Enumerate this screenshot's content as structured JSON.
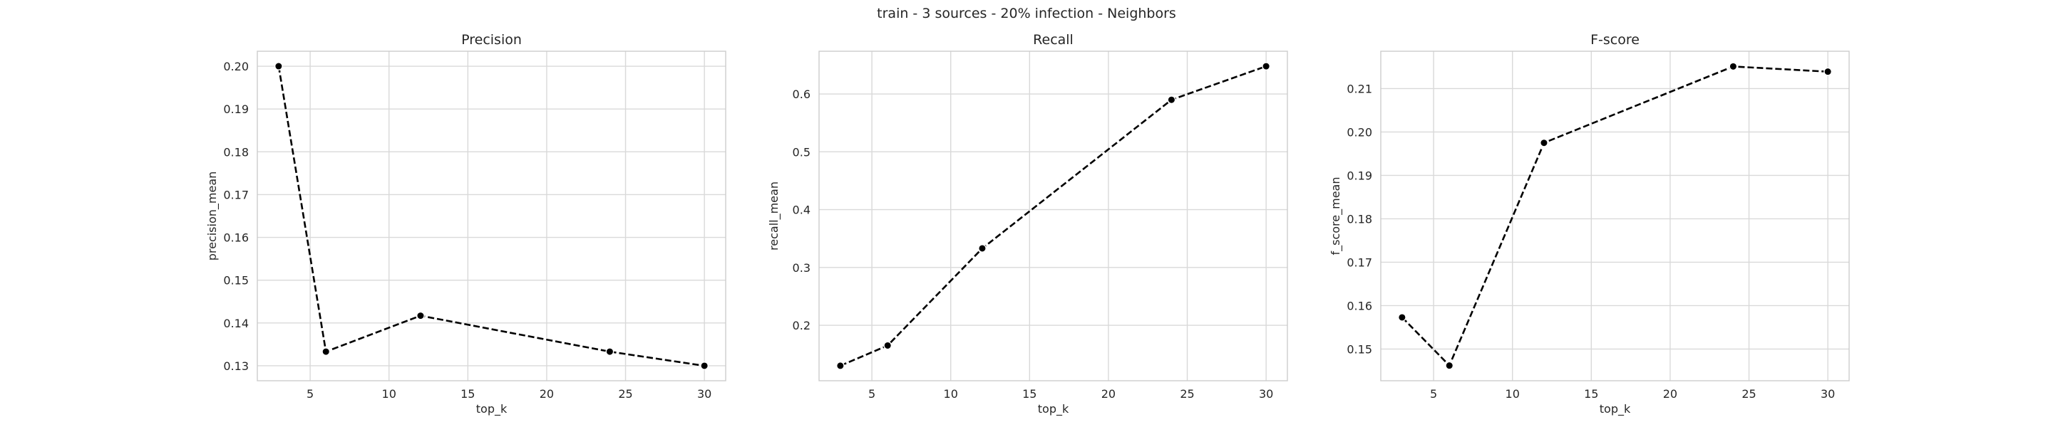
{
  "figure": {
    "suptitle": "train - 3 sources - 20% infection - Neighbors"
  },
  "chart_data": [
    {
      "type": "line",
      "title": "Precision",
      "xlabel": "top_k",
      "ylabel": "precision_mean",
      "x": [
        3,
        6,
        12,
        24,
        30
      ],
      "series": [
        {
          "values": [
            0.2,
            0.1333,
            0.1417,
            0.1333,
            0.13
          ]
        }
      ],
      "xlim": [
        1.65,
        31.35
      ],
      "ylim": [
        0.1265,
        0.2035
      ],
      "xticks": [
        5,
        10,
        15,
        20,
        25,
        30
      ],
      "yticks": [
        0.13,
        0.14,
        0.15,
        0.16,
        0.17,
        0.18,
        0.19,
        0.2
      ],
      "ytick_labels": [
        "0.13",
        "0.14",
        "0.15",
        "0.16",
        "0.17",
        "0.18",
        "0.19",
        "0.20"
      ],
      "grid": true,
      "line_style": "dashed",
      "marker": "circle",
      "color": "#000000"
    },
    {
      "type": "line",
      "title": "Recall",
      "xlabel": "top_k",
      "ylabel": "recall_mean",
      "x": [
        3,
        6,
        12,
        24,
        30
      ],
      "series": [
        {
          "values": [
            0.13,
            0.165,
            0.333,
            0.59,
            0.648
          ]
        }
      ],
      "xlim": [
        1.65,
        31.35
      ],
      "ylim": [
        0.104,
        0.674
      ],
      "xticks": [
        5,
        10,
        15,
        20,
        25,
        30
      ],
      "yticks": [
        0.2,
        0.3,
        0.4,
        0.5,
        0.6
      ],
      "ytick_labels": [
        "0.2",
        "0.3",
        "0.4",
        "0.5",
        "0.6"
      ],
      "grid": true,
      "line_style": "dashed",
      "marker": "circle",
      "color": "#000000"
    },
    {
      "type": "line",
      "title": "F-score",
      "xlabel": "top_k",
      "ylabel": "f_score_mean",
      "x": [
        3,
        6,
        12,
        24,
        30
      ],
      "series": [
        {
          "values": [
            0.1573,
            0.1462,
            0.1975,
            0.2151,
            0.2139
          ]
        }
      ],
      "xlim": [
        1.65,
        31.35
      ],
      "ylim": [
        0.1427,
        0.2186
      ],
      "xticks": [
        5,
        10,
        15,
        20,
        25,
        30
      ],
      "yticks": [
        0.15,
        0.16,
        0.17,
        0.18,
        0.19,
        0.2,
        0.21
      ],
      "ytick_labels": [
        "0.15",
        "0.16",
        "0.17",
        "0.18",
        "0.19",
        "0.20",
        "0.21"
      ],
      "grid": true,
      "line_style": "dashed",
      "marker": "circle",
      "color": "#000000"
    }
  ]
}
